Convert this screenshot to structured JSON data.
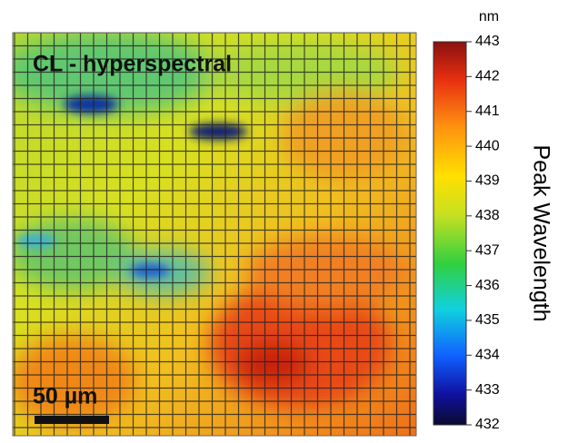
{
  "title": "CL - hyperspectral",
  "scale_bar": "50 µm",
  "colorbar": {
    "unit": "nm",
    "label": "Peak Wavelength",
    "ticks": [
      443,
      442,
      441,
      440,
      439,
      438,
      437,
      436,
      435,
      434,
      433,
      432
    ]
  }
}
